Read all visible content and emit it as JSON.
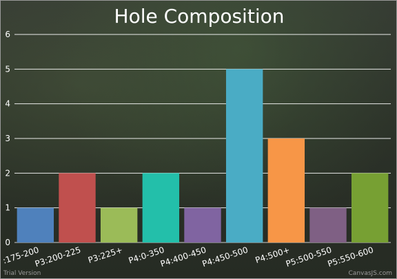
{
  "chart_data": {
    "type": "bar",
    "title": "Hole Composition",
    "categories": [
      ":175-200",
      "P3:200-225",
      "P3:225+",
      "P4:0-350",
      "P4:400-450",
      "P4:450-500",
      "P4:500+",
      "P5:500-550",
      "P5:550-600"
    ],
    "values": [
      1,
      2,
      1,
      2,
      1,
      5,
      3,
      1,
      2
    ],
    "colors": [
      "#4f81bc",
      "#c0504e",
      "#9bbb58",
      "#23bfaa",
      "#8064a1",
      "#4aacc5",
      "#f79647",
      "#7f6084",
      "#77a033"
    ],
    "ylim": [
      0,
      6
    ],
    "yticks": [
      0,
      1,
      2,
      3,
      4,
      5,
      6
    ],
    "grid": true,
    "legend": "none"
  },
  "credits": {
    "left": "Trial Version",
    "right": "CanvasJS.com"
  }
}
